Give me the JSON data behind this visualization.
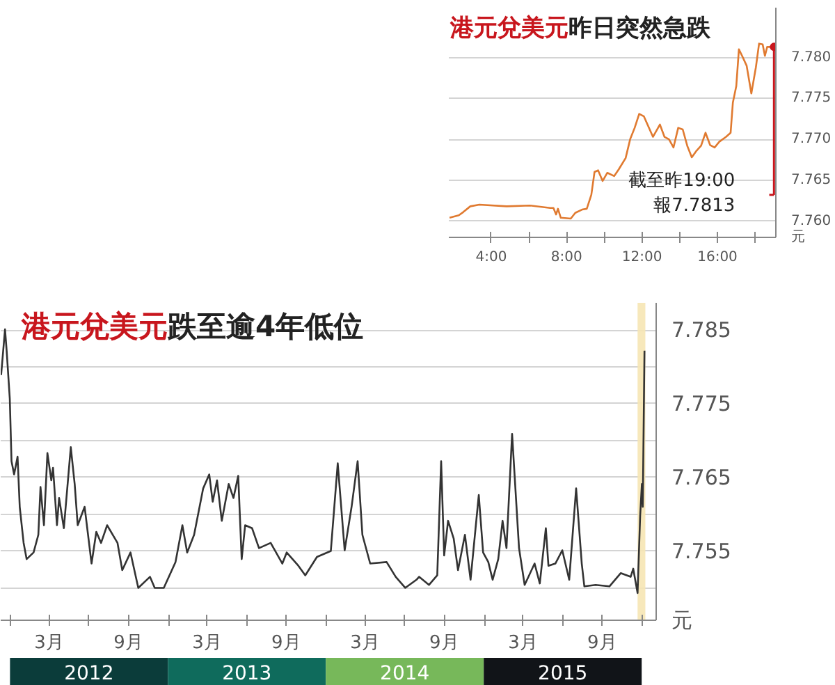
{
  "chart_data": [
    {
      "type": "line",
      "title": "港元兌美元昨日突然急跌",
      "ylabel": "元",
      "grid": "y",
      "xlim": [
        1.75,
        19.1
      ],
      "ylim": [
        7.758,
        7.7861
      ],
      "xticks": [
        {
          "value": 4,
          "label": "4:00"
        },
        {
          "value": 6,
          "label": null
        },
        {
          "value": 8,
          "label": "8:00"
        },
        {
          "value": 10,
          "label": null
        },
        {
          "value": 12,
          "label": "12:00"
        },
        {
          "value": 14,
          "label": null
        },
        {
          "value": 16,
          "label": "16:00"
        },
        {
          "value": 18,
          "label": null
        }
      ],
      "yticks": [
        {
          "value": 7.76,
          "label": "7.760"
        },
        {
          "value": 7.765,
          "label": "7.765"
        },
        {
          "value": 7.77,
          "label": "7.770"
        },
        {
          "value": 7.775,
          "label": "7.775"
        },
        {
          "value": 7.78,
          "label": "7.780"
        }
      ],
      "x": [
        1.79,
        2.28,
        2.52,
        2.89,
        3.37,
        4.82,
        6.04,
        7.13,
        7.3,
        7.44,
        7.54,
        7.69,
        8.22,
        8.46,
        8.82,
        9.07,
        9.31,
        9.48,
        9.67,
        9.91,
        10.16,
        10.52,
        10.76,
        11.13,
        11.37,
        11.61,
        11.85,
        12.1,
        12.58,
        12.95,
        13.19,
        13.43,
        13.67,
        13.92,
        14.16,
        14.4,
        14.64,
        14.89,
        15.13,
        15.37,
        15.61,
        15.85,
        16.1,
        16.46,
        16.7,
        16.82,
        17.0,
        17.14,
        17.31,
        17.55,
        17.8,
        18.04,
        18.21,
        18.4,
        18.52,
        18.64,
        19.0
      ],
      "series": [
        {
          "color": "#e07a30",
          "values": [
            7.7604,
            7.7607,
            7.7611,
            7.7618,
            7.762,
            7.7618,
            7.7619,
            7.7616,
            7.7616,
            7.7608,
            7.7615,
            7.7604,
            7.7603,
            7.761,
            7.7614,
            7.7615,
            7.7632,
            7.766,
            7.7662,
            7.7649,
            7.7659,
            7.7655,
            7.7663,
            7.7677,
            7.77,
            7.7714,
            7.7731,
            7.7728,
            7.7703,
            7.7718,
            7.7703,
            7.77,
            7.769,
            7.7714,
            7.7712,
            7.7692,
            7.7678,
            7.7686,
            7.7692,
            7.7708,
            7.7693,
            7.769,
            7.7697,
            7.7703,
            7.7708,
            7.7745,
            7.7765,
            7.781,
            7.7802,
            7.779,
            7.7756,
            7.7788,
            7.7817,
            7.7816,
            7.7802,
            7.7813,
            7.7813
          ]
        }
      ],
      "annotations": [
        "截至昨19:00\n報7.7813"
      ]
    },
    {
      "type": "line",
      "title": "港元兌美元跌至逾4年低位",
      "ylabel": "元",
      "grid": "y",
      "xlim": [
        "2011-12-10",
        "2016-02-02"
      ],
      "ylim": [
        7.7456,
        7.7887
      ],
      "x2lim": [
        "2011-12-10",
        "2016-02-02"
      ],
      "x2ticks": [
        {
          "value": "2012-07-01",
          "label": "2012"
        },
        {
          "value": "2013-07-01",
          "label": "2013"
        },
        {
          "value": "2014-07-01",
          "label": "2014"
        },
        {
          "value": "2015-07-01",
          "label": "2015"
        }
      ],
      "xticks": [
        {
          "value": "2012-01-01",
          "label": null
        },
        {
          "value": "2012-03-31",
          "label": "3月"
        },
        {
          "value": "2012-07-01",
          "label": null
        },
        {
          "value": "2012-09-30",
          "label": "9月"
        },
        {
          "value": "2013-01-01",
          "label": null
        },
        {
          "value": "2013-03-31",
          "label": "3月"
        },
        {
          "value": "2013-07-01",
          "label": null
        },
        {
          "value": "2013-09-30",
          "label": "9月"
        },
        {
          "value": "2014-01-01",
          "label": null
        },
        {
          "value": "2014-03-31",
          "label": "3月"
        },
        {
          "value": "2014-07-01",
          "label": null
        },
        {
          "value": "2014-09-30",
          "label": "9月"
        },
        {
          "value": "2015-01-01",
          "label": null
        },
        {
          "value": "2015-03-31",
          "label": "3月"
        },
        {
          "value": "2015-07-01",
          "label": null
        },
        {
          "value": "2015-09-30",
          "label": "9月"
        },
        {
          "value": "2016-01-01",
          "label": null
        }
      ],
      "yticks": [
        {
          "value": 7.75,
          "label": null
        },
        7.755,
        {
          "value": 7.76,
          "label": null
        },
        7.765,
        {
          "value": 7.77,
          "label": null
        },
        7.775,
        {
          "value": 7.78,
          "label": null
        },
        7.785
      ],
      "bands": [
        {
          "axis": "x",
          "from": "2015-12-21",
          "to": "2016-01-08",
          "label": null,
          "color": "#f6e6b4"
        }
      ],
      "x": [
        "2011-12-11",
        "2011-12-20",
        "2011-12-24",
        "2011-12-31",
        "2012-01-04",
        "2012-01-10",
        "2012-01-18",
        "2012-01-23",
        "2012-02-01",
        "2012-02-08",
        "2012-02-24",
        "2012-03-06",
        "2012-03-11",
        "2012-03-19",
        "2012-03-27",
        "2012-04-05",
        "2012-04-09",
        "2012-04-18",
        "2012-04-23",
        "2012-05-04",
        "2012-05-20",
        "2012-05-29",
        "2012-06-05",
        "2012-06-21",
        "2012-07-07",
        "2012-07-18",
        "2012-07-29",
        "2012-08-12",
        "2012-09-05",
        "2012-09-16",
        "2012-10-05",
        "2012-10-23",
        "2012-11-19",
        "2012-11-30",
        "2012-12-21",
        "2013-01-17",
        "2013-02-02",
        "2013-02-13",
        "2013-03-01",
        "2013-03-22",
        "2013-04-05",
        "2013-04-13",
        "2013-04-23",
        "2013-05-04",
        "2013-05-20",
        "2013-05-31",
        "2013-06-11",
        "2013-06-19",
        "2013-06-27",
        "2013-07-13",
        "2013-07-29",
        "2013-08-25",
        "2013-09-21",
        "2013-10-01",
        "2013-10-28",
        "2013-11-13",
        "2013-12-10",
        "2014-01-11",
        "2014-01-27",
        "2014-02-12",
        "2014-02-28",
        "2014-03-14",
        "2014-03-25",
        "2014-04-12",
        "2014-05-20",
        "2014-06-10",
        "2014-07-02",
        "2014-07-28",
        "2014-08-03",
        "2014-08-26",
        "2014-09-14",
        "2014-09-23",
        "2014-09-30",
        "2014-10-09",
        "2014-10-22",
        "2014-11-01",
        "2014-11-17",
        "2014-11-30",
        "2014-12-19",
        "2014-12-29",
        "2015-01-10",
        "2015-01-20",
        "2015-02-02",
        "2015-02-12",
        "2015-02-21",
        "2015-03-06",
        "2015-03-22",
        "2015-04-04",
        "2015-04-27",
        "2015-05-09",
        "2015-05-23",
        "2015-05-29",
        "2015-06-14",
        "2015-06-30",
        "2015-07-16",
        "2015-08-01",
        "2015-08-14",
        "2015-08-20",
        "2015-09-15",
        "2015-10-17",
        "2015-11-12",
        "2015-12-05",
        "2015-12-11",
        "2015-12-21",
        "2015-12-27",
        "2015-12-31",
        "2016-01-02",
        "2016-01-06"
      ],
      "series": [
        {
          "color": "#333333",
          "values": [
            7.7789,
            7.7851,
            7.782,
            7.7757,
            7.7672,
            7.7654,
            7.7678,
            7.761,
            7.7561,
            7.7539,
            7.7548,
            7.7572,
            7.7637,
            7.7585,
            7.7683,
            7.7646,
            7.7663,
            7.7585,
            7.7622,
            7.7581,
            7.7691,
            7.7641,
            7.7585,
            7.761,
            7.7533,
            7.7576,
            7.7561,
            7.7585,
            7.7561,
            7.7524,
            7.7548,
            7.75,
            7.7515,
            7.75,
            7.75,
            7.7535,
            7.7585,
            7.7548,
            7.7572,
            7.7635,
            7.7654,
            7.7617,
            7.7646,
            7.7591,
            7.7641,
            7.7622,
            7.7652,
            7.7539,
            7.7585,
            7.7581,
            7.7554,
            7.7561,
            7.7533,
            7.7548,
            7.753,
            7.7517,
            7.7542,
            7.755,
            7.7669,
            7.7551,
            7.761,
            7.7672,
            7.7572,
            7.7533,
            7.7535,
            7.7515,
            7.75,
            7.7511,
            7.7515,
            7.7504,
            7.7517,
            7.7672,
            7.7544,
            7.7591,
            7.7567,
            7.7524,
            7.7572,
            7.7511,
            7.7626,
            7.7548,
            7.7535,
            7.7511,
            7.7539,
            7.7591,
            7.7554,
            7.7709,
            7.7554,
            7.7504,
            7.7533,
            7.7506,
            7.7581,
            7.753,
            7.7533,
            7.7551,
            7.7511,
            7.7635,
            7.7533,
            7.7502,
            7.7504,
            7.7502,
            7.752,
            7.7515,
            7.7526,
            7.7493,
            7.7598,
            7.7641,
            7.761,
            7.7822
          ]
        }
      ]
    }
  ]
}
